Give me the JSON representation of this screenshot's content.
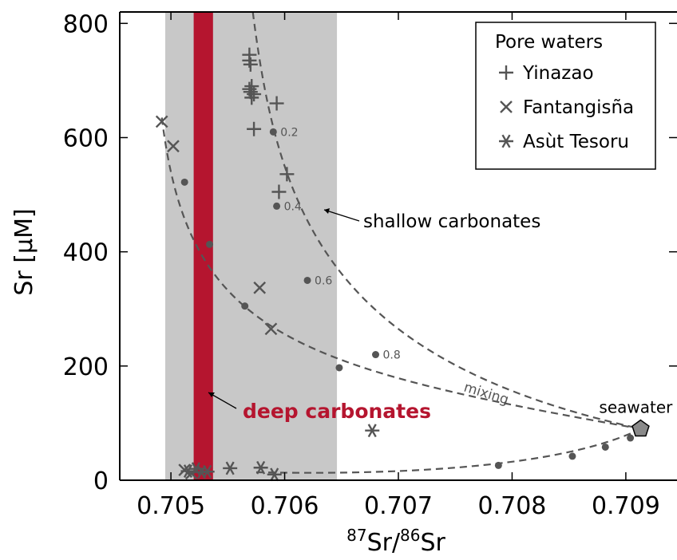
{
  "chart_data": {
    "type": "scatter",
    "xlabel_sup1": "87",
    "xlabel_sr1": "Sr/",
    "xlabel_sup2": "86",
    "xlabel_sr2": "Sr",
    "ylabel": "Sr [µM]",
    "xlim": [
      0.70455,
      0.70945
    ],
    "ylim": [
      0,
      820
    ],
    "xticks": [
      0.705,
      0.706,
      0.707,
      0.708,
      0.709
    ],
    "xtick_labels": [
      "0.705",
      "0.706",
      "0.707",
      "0.708",
      "0.709"
    ],
    "yticks": [
      0,
      200,
      400,
      600,
      800
    ],
    "ytick_labels": [
      "0",
      "200",
      "400",
      "600",
      "800"
    ],
    "grid": false,
    "legend": {
      "title": "Pore waters",
      "position": "top-right",
      "entries": [
        {
          "name": "Yinazao",
          "marker": "plus"
        },
        {
          "name": "Fantangisña",
          "marker": "x"
        },
        {
          "name": "Asùt Tesoru",
          "marker": "asterisk"
        }
      ]
    },
    "colors": {
      "markers": "#555555",
      "shallow_band": "#c8c8c8",
      "deep_band": "#b5152f",
      "seawater_fill": "#8a8a8a"
    },
    "shaded_regions": [
      {
        "name": "shallow carbonates",
        "x_range": [
          0.70495,
          0.70646
        ],
        "color": "#c8c8c8"
      },
      {
        "name": "deep carbonates",
        "x_range": [
          0.7052,
          0.70537
        ],
        "color": "#b5152f"
      }
    ],
    "series": [
      {
        "name": "Yinazao",
        "marker": "plus",
        "points": [
          [
            0.70569,
            745
          ],
          [
            0.70569,
            735
          ],
          [
            0.7057,
            728
          ],
          [
            0.70571,
            690
          ],
          [
            0.70569,
            685
          ],
          [
            0.7057,
            680
          ],
          [
            0.70573,
            676
          ],
          [
            0.70571,
            670
          ],
          [
            0.70593,
            660
          ],
          [
            0.70573,
            615
          ],
          [
            0.70602,
            536
          ],
          [
            0.70595,
            505
          ]
        ]
      },
      {
        "name": "Fantangisña",
        "marker": "x",
        "points": [
          [
            0.70492,
            628
          ],
          [
            0.70502,
            585
          ],
          [
            0.70578,
            337
          ],
          [
            0.70588,
            265
          ],
          [
            0.70512,
            18
          ],
          [
            0.70518,
            12
          ]
        ]
      },
      {
        "name": "Asùt Tesoru",
        "marker": "asterisk",
        "points": [
          [
            0.70522,
            20
          ],
          [
            0.70527,
            14
          ],
          [
            0.70532,
            15
          ],
          [
            0.70552,
            21
          ],
          [
            0.70579,
            22
          ],
          [
            0.70591,
            10
          ],
          [
            0.70677,
            87
          ],
          [
            0.70515,
            16
          ]
        ]
      }
    ],
    "seawater": {
      "label": "seawater",
      "x": 0.70913,
      "y": 90
    },
    "mixing_curves": [
      {
        "name": "shallow",
        "fraction_points": [
          {
            "f": 0.2,
            "x": 0.7059,
            "y": 610
          },
          {
            "f": 0.4,
            "x": 0.70593,
            "y": 480
          },
          {
            "f": 0.6,
            "x": 0.7062,
            "y": 350
          },
          {
            "f": 0.8,
            "x": 0.7068,
            "y": 220
          }
        ]
      },
      {
        "name": "deep",
        "fraction_points": [
          {
            "x": 0.70512,
            "y": 522
          },
          {
            "x": 0.70534,
            "y": 413
          },
          {
            "x": 0.70565,
            "y": 305
          },
          {
            "x": 0.70648,
            "y": 197
          }
        ]
      },
      {
        "name": "low",
        "fraction_points": [
          {
            "x": 0.70788,
            "y": 26
          },
          {
            "x": 0.70853,
            "y": 42
          },
          {
            "x": 0.70882,
            "y": 58
          },
          {
            "x": 0.70904,
            "y": 74
          }
        ]
      }
    ],
    "fraction_labels": [
      "0.2",
      "0.4",
      "0.6",
      "0.8"
    ],
    "annotations": {
      "shallow": "shallow carbonates",
      "deep": "deep carbonates",
      "mixing": "mixing"
    }
  }
}
